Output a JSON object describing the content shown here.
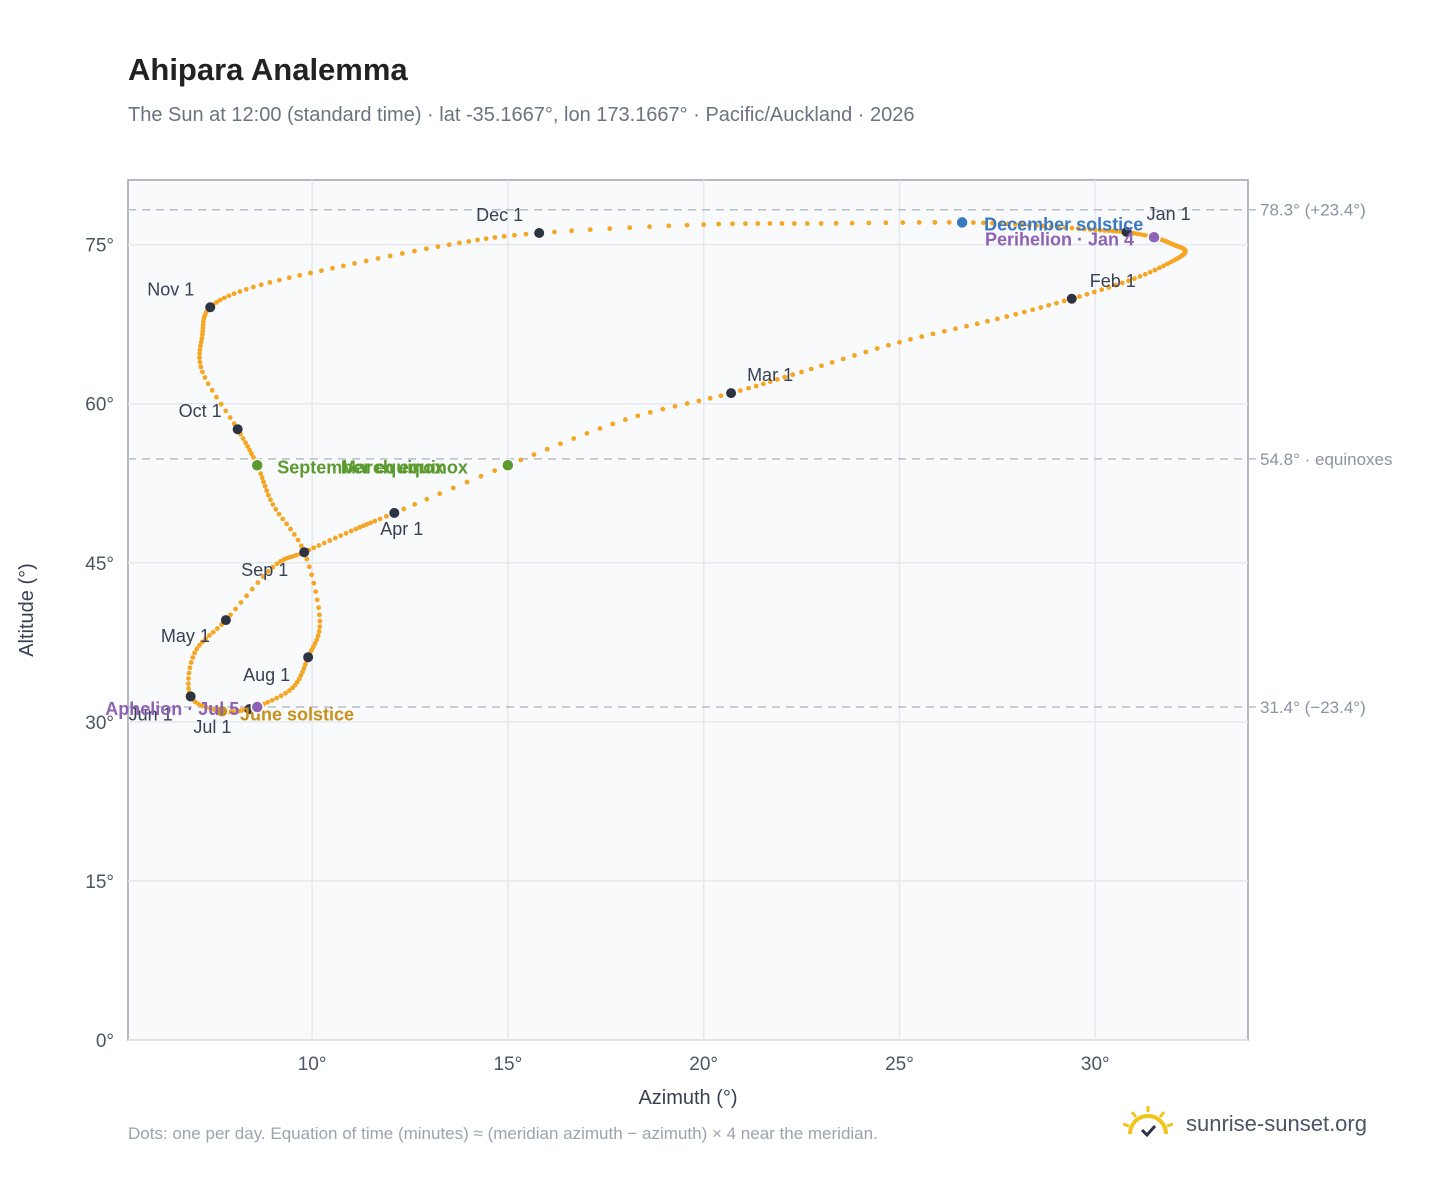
{
  "header": {
    "title": "Ahipara Analemma",
    "subtitle": "The Sun at 12:00 (standard time) · lat -35.1667°, lon 173.1667° · Pacific/Auckland · 2026"
  },
  "footer": {
    "note": "Dots: one per day. Equation of time (minutes) ≈ (meridian azimuth − azimuth) × 4 near the meridian.",
    "brand": "sunrise-sunset.org"
  },
  "colors": {
    "curve": "#f5a623",
    "month_marker": "#2d3340",
    "equinox": "#5a9a2e",
    "june_solstice": "#c8901a",
    "december_solstice": "#3a78c0",
    "apsis": "#8e62b4",
    "reference_line": "#b6bec8",
    "plot_bg": "#f8fafc",
    "grid": "#e5e9ef"
  },
  "chart_data": {
    "type": "scatter",
    "title": "Ahipara Analemma",
    "xlabel": "Azimuth (°)",
    "ylabel": "Altitude (°)",
    "xlim": [
      5.3,
      33.9
    ],
    "ylim": [
      0,
      81.1
    ],
    "x_ticks": [
      10,
      15,
      20,
      25,
      30
    ],
    "x_tick_labels": [
      "10°",
      "15°",
      "20°",
      "25°",
      "30°"
    ],
    "y_ticks": [
      0,
      15,
      30,
      45,
      60,
      75
    ],
    "y_tick_labels": [
      "0°",
      "15°",
      "30°",
      "45°",
      "60°",
      "75°"
    ],
    "grid": true,
    "reference_lines": [
      {
        "altitude": 78.3,
        "label": "78.3° (+23.4°)"
      },
      {
        "altitude": 54.8,
        "label": "54.8° · equinoxes"
      },
      {
        "altitude": 31.4,
        "label": "31.4° (−23.4°)"
      }
    ],
    "series": [
      {
        "points_per": "day",
        "points": [
          [
            30.8,
            76.2
          ],
          [
            31.5,
            75.7
          ],
          [
            32.0,
            75.0
          ],
          [
            32.3,
            74.4
          ],
          [
            32.0,
            73.5
          ],
          [
            31.0,
            71.8
          ],
          [
            29.4,
            69.9
          ],
          [
            27.5,
            68.0
          ],
          [
            25.0,
            65.8
          ],
          [
            22.5,
            63.0
          ],
          [
            20.7,
            61.0
          ],
          [
            18.0,
            58.5
          ],
          [
            15.0,
            54.2
          ],
          [
            12.1,
            49.7
          ],
          [
            11.0,
            48.0
          ],
          [
            9.8,
            46.0
          ],
          [
            9.0,
            44.6
          ],
          [
            7.8,
            39.6
          ],
          [
            7.0,
            36.5
          ],
          [
            6.9,
            32.4
          ],
          [
            7.7,
            31.0
          ],
          [
            8.4,
            31.2
          ],
          [
            8.6,
            31.4
          ],
          [
            9.5,
            33.2
          ],
          [
            9.9,
            36.1
          ],
          [
            10.2,
            39.5
          ],
          [
            9.8,
            46.0
          ],
          [
            9.0,
            50.5
          ],
          [
            8.6,
            54.2
          ],
          [
            8.1,
            57.6
          ],
          [
            7.2,
            63.0
          ],
          [
            7.2,
            66.5
          ],
          [
            7.4,
            69.1
          ],
          [
            8.5,
            71.0
          ],
          [
            10.8,
            73.0
          ],
          [
            13.5,
            75.0
          ],
          [
            15.8,
            76.1
          ],
          [
            20.0,
            76.9
          ],
          [
            23.0,
            77.0
          ],
          [
            26.6,
            77.1
          ],
          [
            28.5,
            76.8
          ],
          [
            30.0,
            76.4
          ],
          [
            30.8,
            76.2
          ]
        ]
      }
    ],
    "month_markers": [
      {
        "label": "Jan 1",
        "x": 30.8,
        "y": 76.2
      },
      {
        "label": "Feb 1",
        "x": 29.4,
        "y": 69.9
      },
      {
        "label": "Mar 1",
        "x": 20.7,
        "y": 61.0
      },
      {
        "label": "Apr 1",
        "x": 12.1,
        "y": 49.7
      },
      {
        "label": "May 1",
        "x": 7.8,
        "y": 39.6
      },
      {
        "label": "Jun 1",
        "x": 6.9,
        "y": 32.4
      },
      {
        "label": "Jul 1",
        "x": 8.4,
        "y": 31.2
      },
      {
        "label": "Aug 1",
        "x": 9.9,
        "y": 36.1
      },
      {
        "label": "Sep 1",
        "x": 9.8,
        "y": 46.0
      },
      {
        "label": "Oct 1",
        "x": 8.1,
        "y": 57.6
      },
      {
        "label": "Nov 1",
        "x": 7.4,
        "y": 69.1
      },
      {
        "label": "Dec 1",
        "x": 15.8,
        "y": 76.1
      }
    ],
    "events": [
      {
        "label": "March equinox",
        "x": 15.0,
        "y": 54.2,
        "kind": "equinox"
      },
      {
        "label": "September equinox",
        "x": 8.6,
        "y": 54.2,
        "kind": "equinox"
      },
      {
        "label": "June solstice",
        "x": 7.7,
        "y": 31.0,
        "kind": "june_solstice"
      },
      {
        "label": "December solstice",
        "x": 26.6,
        "y": 77.1,
        "kind": "december_solstice"
      },
      {
        "label": "Perihelion · Jan 4",
        "x": 31.5,
        "y": 75.7,
        "kind": "apsis"
      },
      {
        "label": "Aphelion · Jul 5",
        "x": 8.6,
        "y": 31.4,
        "kind": "apsis"
      }
    ]
  }
}
